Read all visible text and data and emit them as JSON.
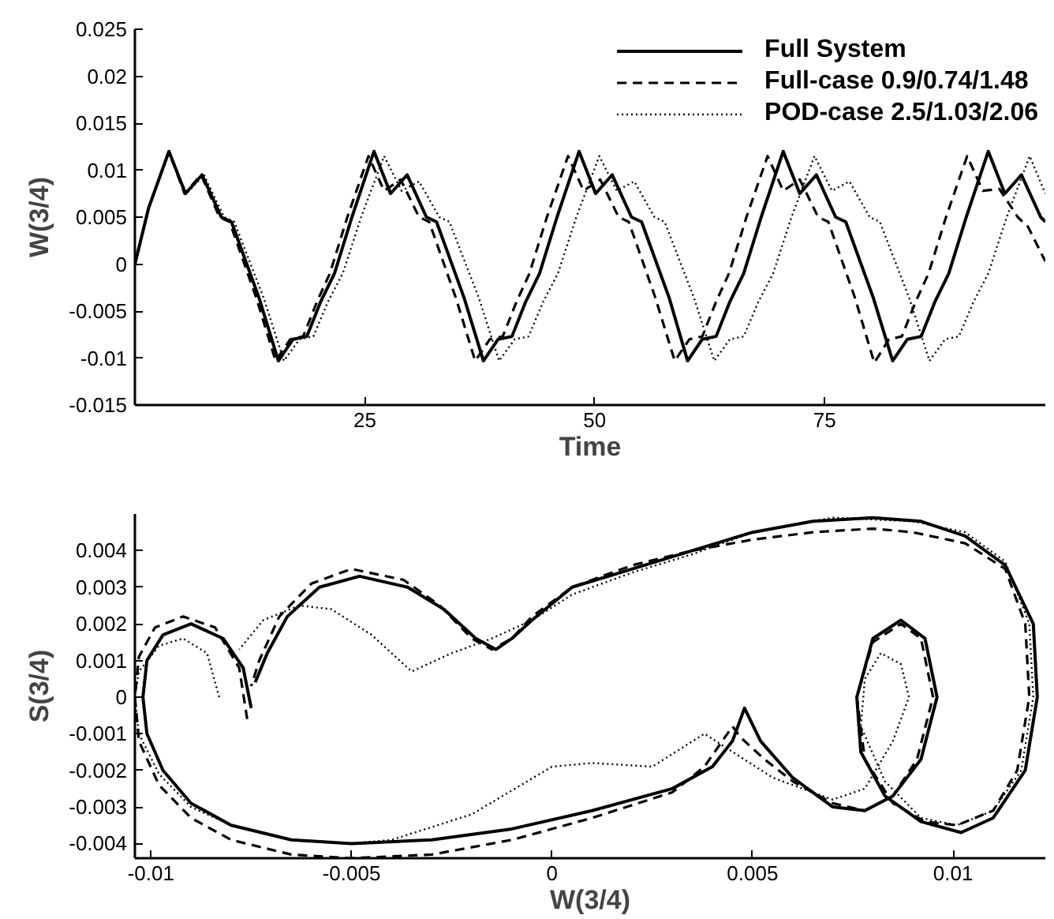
{
  "chart_data": [
    {
      "type": "line",
      "xlabel": "Time",
      "ylabel": "W(3/4)",
      "xlim": [
        0,
        99
      ],
      "ylim": [
        -0.015,
        0.025
      ],
      "xticks": [
        25,
        50,
        75
      ],
      "yticks": [
        -0.015,
        -0.01,
        -0.005,
        0,
        0.005,
        0.01,
        0.015,
        0.02,
        0.025
      ],
      "grid": false,
      "legend": "top right",
      "series": [
        {
          "name": "Full System",
          "color": "#000000",
          "line_style": "solid",
          "x": [
            0,
            1.5,
            3.7,
            5.5,
            7.3,
            9.4,
            10.5,
            13.5,
            15.6,
            17.2,
            18.7,
            20.2,
            21.7,
            23.6,
            26.0,
            27.8,
            29.6,
            31.7,
            32.8,
            35.8,
            37.9,
            39.5,
            41.0,
            42.5,
            44.0,
            45.9,
            48.3,
            50.1,
            51.9,
            54.0,
            55.1,
            58.1,
            60.1,
            61.7,
            63.2,
            64.7,
            66.2,
            68.1,
            70.5,
            72.3,
            74.1,
            76.2,
            77.3,
            80.3,
            82.4,
            84.0,
            85.5,
            87.0,
            88.5,
            90.4,
            92.8,
            94.6,
            96.4,
            98.5,
            99.0
          ],
          "values": [
            0,
            0.006,
            0.012,
            0.0075,
            0.0095,
            0.005,
            0.0045,
            -0.0036,
            -0.0103,
            -0.008,
            -0.0077,
            -0.004,
            -0.001,
            0.005,
            0.012,
            0.0075,
            0.0095,
            0.005,
            0.0045,
            -0.0036,
            -0.0103,
            -0.008,
            -0.0077,
            -0.004,
            -0.001,
            0.005,
            0.012,
            0.0075,
            0.0095,
            0.005,
            0.0045,
            -0.0036,
            -0.0103,
            -0.008,
            -0.0077,
            -0.004,
            -0.001,
            0.005,
            0.012,
            0.0075,
            0.0095,
            0.005,
            0.0045,
            -0.0036,
            -0.0103,
            -0.008,
            -0.0077,
            -0.004,
            -0.001,
            0.005,
            0.012,
            0.0075,
            0.0095,
            0.005,
            0.0045
          ]
        },
        {
          "name": "Full-case 0.9/0.74/1.48",
          "color": "#000000",
          "line_style": "dashed",
          "x": [
            0,
            1.5,
            3.7,
            5.4,
            7.2,
            9.2,
            10.3,
            13.2,
            15.3,
            16.9,
            18.3,
            19.8,
            21.2,
            23.1,
            25.4,
            27.1,
            28.9,
            30.9,
            32.0,
            34.9,
            37.0,
            38.6,
            40.0,
            41.5,
            42.9,
            44.8,
            47.1,
            48.8,
            50.6,
            52.6,
            53.7,
            56.6,
            58.7,
            60.3,
            61.7,
            63.2,
            64.6,
            66.5,
            68.8,
            70.5,
            72.3,
            74.3,
            75.4,
            78.3,
            80.4,
            82.0,
            83.4,
            84.9,
            86.3,
            88.2,
            90.5,
            92.2,
            94.0,
            96.0,
            97.1,
            99.0
          ],
          "values": [
            0,
            0.006,
            0.012,
            0.0075,
            0.0095,
            0.005,
            0.0045,
            -0.0036,
            -0.0103,
            -0.008,
            -0.0077,
            -0.004,
            -0.001,
            0.005,
            0.0115,
            0.0078,
            0.009,
            0.005,
            0.0045,
            -0.0036,
            -0.0103,
            -0.008,
            -0.0077,
            -0.004,
            -0.001,
            0.005,
            0.0115,
            0.0078,
            0.009,
            0.005,
            0.0045,
            -0.0036,
            -0.0103,
            -0.008,
            -0.0077,
            -0.004,
            -0.001,
            0.005,
            0.0115,
            0.0078,
            0.009,
            0.005,
            0.0045,
            -0.0036,
            -0.0105,
            -0.008,
            -0.0077,
            -0.004,
            -0.001,
            0.005,
            0.0115,
            0.0078,
            0.008,
            0.005,
            0.004,
            0.0003
          ]
        },
        {
          "name": "POD-case 2.5/1.03/2.06",
          "color": "#000000",
          "line_style": "dotted",
          "x": [
            0,
            1.5,
            3.7,
            5.6,
            7.5,
            9.7,
            10.8,
            14.0,
            16.2,
            17.9,
            19.4,
            21.0,
            22.6,
            24.6,
            27.1,
            29.0,
            30.9,
            33.1,
            34.2,
            37.4,
            39.6,
            41.3,
            42.8,
            44.4,
            46.0,
            48.0,
            50.5,
            52.4,
            54.3,
            56.5,
            57.6,
            60.8,
            63.0,
            64.7,
            66.2,
            67.8,
            69.4,
            71.4,
            73.9,
            75.8,
            77.7,
            79.9,
            81.0,
            84.2,
            86.4,
            88.1,
            89.6,
            91.2,
            92.8,
            94.8,
            97.3,
            99.0
          ],
          "values": [
            0,
            0.006,
            0.012,
            0.0075,
            0.0095,
            0.005,
            0.0045,
            -0.0036,
            -0.0103,
            -0.008,
            -0.0077,
            -0.004,
            -0.001,
            0.005,
            0.0115,
            0.0078,
            0.0088,
            0.005,
            0.0045,
            -0.0036,
            -0.0103,
            -0.008,
            -0.0077,
            -0.004,
            -0.001,
            0.005,
            0.0115,
            0.0078,
            0.0088,
            0.005,
            0.0045,
            -0.0036,
            -0.0103,
            -0.008,
            -0.0077,
            -0.004,
            -0.001,
            0.005,
            0.0115,
            0.0078,
            0.0088,
            0.005,
            0.0045,
            -0.0036,
            -0.0103,
            -0.008,
            -0.0077,
            -0.004,
            -0.001,
            0.005,
            0.0115,
            0.0075
          ]
        }
      ]
    },
    {
      "type": "line",
      "xlabel": "W(3/4)",
      "ylabel": "S(3/4)",
      "xlim": [
        -0.0104,
        0.0123
      ],
      "ylim": [
        -0.0044,
        0.005
      ],
      "xticks": [
        -0.01,
        -0.005,
        0,
        0.005,
        0.01
      ],
      "yticks": [
        -0.004,
        -0.003,
        -0.002,
        -0.001,
        0,
        0.001,
        0.002,
        0.003,
        0.004
      ],
      "grid": false,
      "series": [
        {
          "color": "#000000",
          "line_style": "solid",
          "x": [
            -0.0075,
            -0.0077,
            -0.0082,
            -0.009,
            -0.0097,
            -0.0101,
            -0.0102,
            -0.0101,
            -0.0097,
            -0.009,
            -0.008,
            -0.0065,
            -0.005,
            -0.003,
            -0.001,
            0.001,
            0.003,
            0.004,
            0.0045,
            0.0048,
            0.0052,
            0.006,
            0.007,
            0.0078,
            0.0085,
            0.0092,
            0.0096,
            0.0093,
            0.0087,
            0.008,
            0.0076,
            0.0077,
            0.0083,
            0.0092,
            0.0102,
            0.011,
            0.0118,
            0.0121,
            0.012,
            0.0113,
            0.0103,
            0.0092,
            0.008,
            0.0065,
            0.005,
            0.0035,
            0.002,
            0.0005,
            -0.0005,
            -0.001,
            -0.0014,
            -0.0019,
            -0.0027,
            -0.0036,
            -0.0048,
            -0.0058,
            -0.0066,
            -0.0071,
            -0.0074
          ],
          "values": [
            -0.0003,
            0.0008,
            0.0016,
            0.002,
            0.0017,
            0.001,
            0,
            -0.001,
            -0.002,
            -0.0029,
            -0.0035,
            -0.0039,
            -0.004,
            -0.0039,
            -0.0036,
            -0.0031,
            -0.0025,
            -0.0019,
            -0.0012,
            -0.0003,
            -0.0012,
            -0.0022,
            -0.003,
            -0.0031,
            -0.0027,
            -0.0017,
            0,
            0.0016,
            0.0021,
            0.0016,
            0,
            -0.0015,
            -0.0027,
            -0.0034,
            -0.0037,
            -0.0033,
            -0.002,
            0,
            0.002,
            0.0036,
            0.0044,
            0.0048,
            0.0049,
            0.0048,
            0.0045,
            0.004,
            0.0035,
            0.003,
            0.0021,
            0.0016,
            0.0013,
            0.0016,
            0.0024,
            0.003,
            0.0033,
            0.003,
            0.0022,
            0.0012,
            0.0004
          ]
        },
        {
          "color": "#000000",
          "line_style": "dashed",
          "x": [
            -0.0076,
            -0.0078,
            -0.0084,
            -0.0092,
            -0.0099,
            -0.0103,
            -0.0104,
            -0.0103,
            -0.0098,
            -0.009,
            -0.008,
            -0.0065,
            -0.005,
            -0.003,
            -0.001,
            0.001,
            0.003,
            0.0038,
            0.0045,
            0.0047,
            0.0053,
            0.006,
            0.007,
            0.0078,
            0.0085,
            0.0091,
            0.0095,
            0.0092,
            0.0087,
            0.008,
            0.0076,
            0.0078,
            0.0085,
            0.0093,
            0.0101,
            0.011,
            0.0116,
            0.0119,
            0.0118,
            0.0113,
            0.0103,
            0.009,
            0.008,
            0.0065,
            0.005,
            0.0035,
            0.002,
            0.0005,
            -0.0005,
            -0.001,
            -0.0015,
            -0.002,
            -0.0028,
            -0.0037,
            -0.005,
            -0.006,
            -0.0068,
            -0.0073,
            -0.0075
          ],
          "values": [
            -0.0006,
            0.0008,
            0.0019,
            0.0022,
            0.0019,
            0.0011,
            0,
            -0.0012,
            -0.0024,
            -0.0033,
            -0.0039,
            -0.0043,
            -0.0044,
            -0.0043,
            -0.0039,
            -0.0033,
            -0.0026,
            -0.0019,
            -0.0008,
            -0.0011,
            -0.0017,
            -0.0023,
            -0.0029,
            -0.0031,
            -0.0027,
            -0.0017,
            0,
            0.0016,
            0.002,
            0.0015,
            0,
            -0.0017,
            -0.0029,
            -0.0034,
            -0.0035,
            -0.0031,
            -0.002,
            0,
            0.002,
            0.0035,
            0.0042,
            0.0045,
            0.0046,
            0.0045,
            0.0043,
            0.004,
            0.0036,
            0.003,
            0.0022,
            0.0016,
            0.0013,
            0.0016,
            0.0025,
            0.0032,
            0.0035,
            0.0031,
            0.0022,
            0.001,
            0.0003
          ]
        },
        {
          "color": "#000000",
          "line_style": "dotted",
          "x": [
            -0.0083,
            -0.0086,
            -0.0092,
            -0.0098,
            -0.0103,
            -0.0104,
            -0.0103,
            -0.0098,
            -0.009,
            -0.008,
            -0.0065,
            -0.005,
            -0.004,
            -0.002,
            0,
            0.001,
            0.0025,
            0.0038,
            0.0055,
            0.007,
            0.0078,
            0.0085,
            0.0089,
            0.0087,
            0.0082,
            0.0078,
            0.0077,
            0.0083,
            0.0092,
            0.0101,
            0.011,
            0.0117,
            0.012,
            0.0119,
            0.0113,
            0.0103,
            0.009,
            0.007,
            0.005,
            0.0035,
            0.002,
            0.0005,
            -0.0005,
            -0.0015,
            -0.0025,
            -0.0035,
            -0.0045,
            -0.0055,
            -0.0063,
            -0.0072,
            -0.0078
          ],
          "values": [
            0,
            0.0012,
            0.0016,
            0.0014,
            0.0007,
            0,
            -0.001,
            -0.0021,
            -0.003,
            -0.0035,
            -0.0039,
            -0.004,
            -0.0039,
            -0.0032,
            -0.0019,
            -0.0018,
            -0.0019,
            -0.001,
            -0.0022,
            -0.0028,
            -0.0025,
            -0.0012,
            0,
            0.0009,
            0.0012,
            0.0005,
            -0.0008,
            -0.0023,
            -0.0033,
            -0.0035,
            -0.0031,
            -0.002,
            0,
            0.002,
            0.0037,
            0.0045,
            0.0048,
            0.0049,
            0.0045,
            0.0039,
            0.0034,
            0.0028,
            0.0021,
            0.0016,
            0.0012,
            0.0007,
            0.0017,
            0.0024,
            0.0025,
            0.0021,
            0.0013
          ]
        }
      ]
    }
  ]
}
